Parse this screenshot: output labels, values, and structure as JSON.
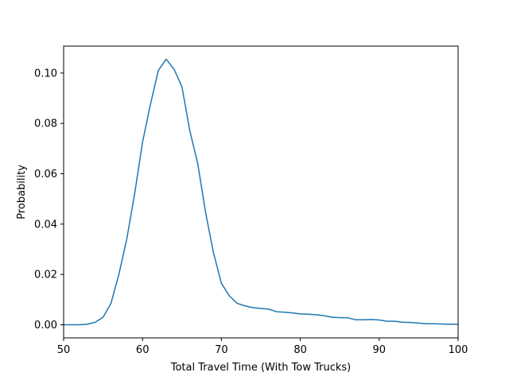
{
  "chart_data": {
    "type": "line",
    "title": "",
    "xlabel": "Total Travel Time (With Tow Trucks)",
    "ylabel": "Probability",
    "xlim": [
      50,
      100
    ],
    "ylim": [
      -0.0052,
      0.1107
    ],
    "grid": false,
    "legend": "none",
    "x_ticks": [
      50,
      60,
      70,
      80,
      90,
      100
    ],
    "x_tick_labels": [
      "50",
      "60",
      "70",
      "80",
      "90",
      "100"
    ],
    "y_ticks": [
      0.0,
      0.02,
      0.04,
      0.06,
      0.08,
      0.1
    ],
    "y_tick_labels": [
      "0.00",
      "0.02",
      "0.04",
      "0.06",
      "0.08",
      "0.10"
    ],
    "line_color": "#1f77b4",
    "series": [
      {
        "x": [
          50,
          51,
          52,
          53,
          54,
          55,
          56,
          57,
          58,
          59,
          60,
          61,
          62,
          63,
          64,
          65,
          66,
          67,
          68,
          69,
          70,
          71,
          72,
          73,
          74,
          75,
          76,
          77,
          78,
          79,
          80,
          81,
          82,
          83,
          84,
          85,
          86,
          87,
          88,
          89,
          90,
          91,
          92,
          93,
          94,
          95,
          96,
          97,
          98,
          99,
          100
        ],
        "values": [
          0.0,
          0.0,
          0.0,
          0.0002,
          0.001,
          0.003,
          0.0085,
          0.02,
          0.034,
          0.052,
          0.0725,
          0.0875,
          0.101,
          0.1055,
          0.1015,
          0.0945,
          0.077,
          0.064,
          0.0445,
          0.0285,
          0.0165,
          0.0115,
          0.0085,
          0.0075,
          0.0068,
          0.0065,
          0.0062,
          0.0052,
          0.005,
          0.0047,
          0.0043,
          0.0042,
          0.004,
          0.0036,
          0.003,
          0.0028,
          0.0028,
          0.002,
          0.002,
          0.0021,
          0.0019,
          0.0014,
          0.0014,
          0.001,
          0.0009,
          0.0007,
          0.0004,
          0.0004,
          0.0003,
          0.0002,
          0.0002
        ]
      }
    ]
  }
}
